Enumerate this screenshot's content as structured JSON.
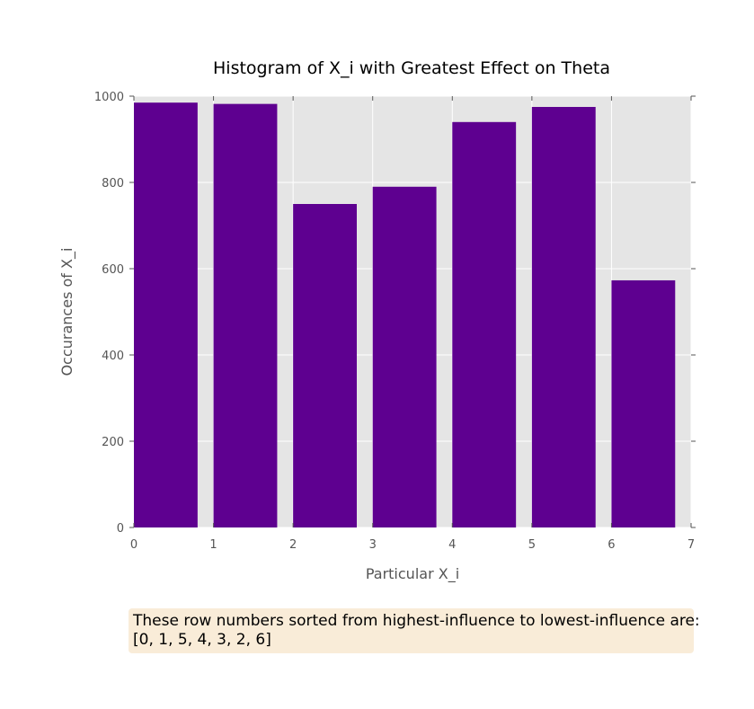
{
  "chart_data": {
    "type": "bar",
    "title": "Histogram of X_i with Greatest Effect on Theta",
    "xlabel": "Particular X_i",
    "ylabel": "Occurances of X_i",
    "x": [
      0,
      1,
      2,
      3,
      4,
      5,
      6
    ],
    "bar_width": 0.8,
    "values": [
      985,
      982,
      750,
      790,
      940,
      975,
      573
    ],
    "xlim": [
      0,
      7
    ],
    "ylim": [
      0,
      1000
    ],
    "xticks": [
      "0",
      "1",
      "2",
      "3",
      "4",
      "5",
      "6",
      "7"
    ],
    "yticks": [
      "0",
      "200",
      "400",
      "600",
      "800",
      "1000"
    ],
    "bar_color": "#5e0090",
    "background_color": "#e5e5e5",
    "grid": true
  },
  "annotation": {
    "line1": "These row numbers sorted from highest-influence to lowest-influence are:",
    "line2": "[0, 1, 5, 4, 3, 2, 6]",
    "background_color": "#f9ecd8"
  }
}
